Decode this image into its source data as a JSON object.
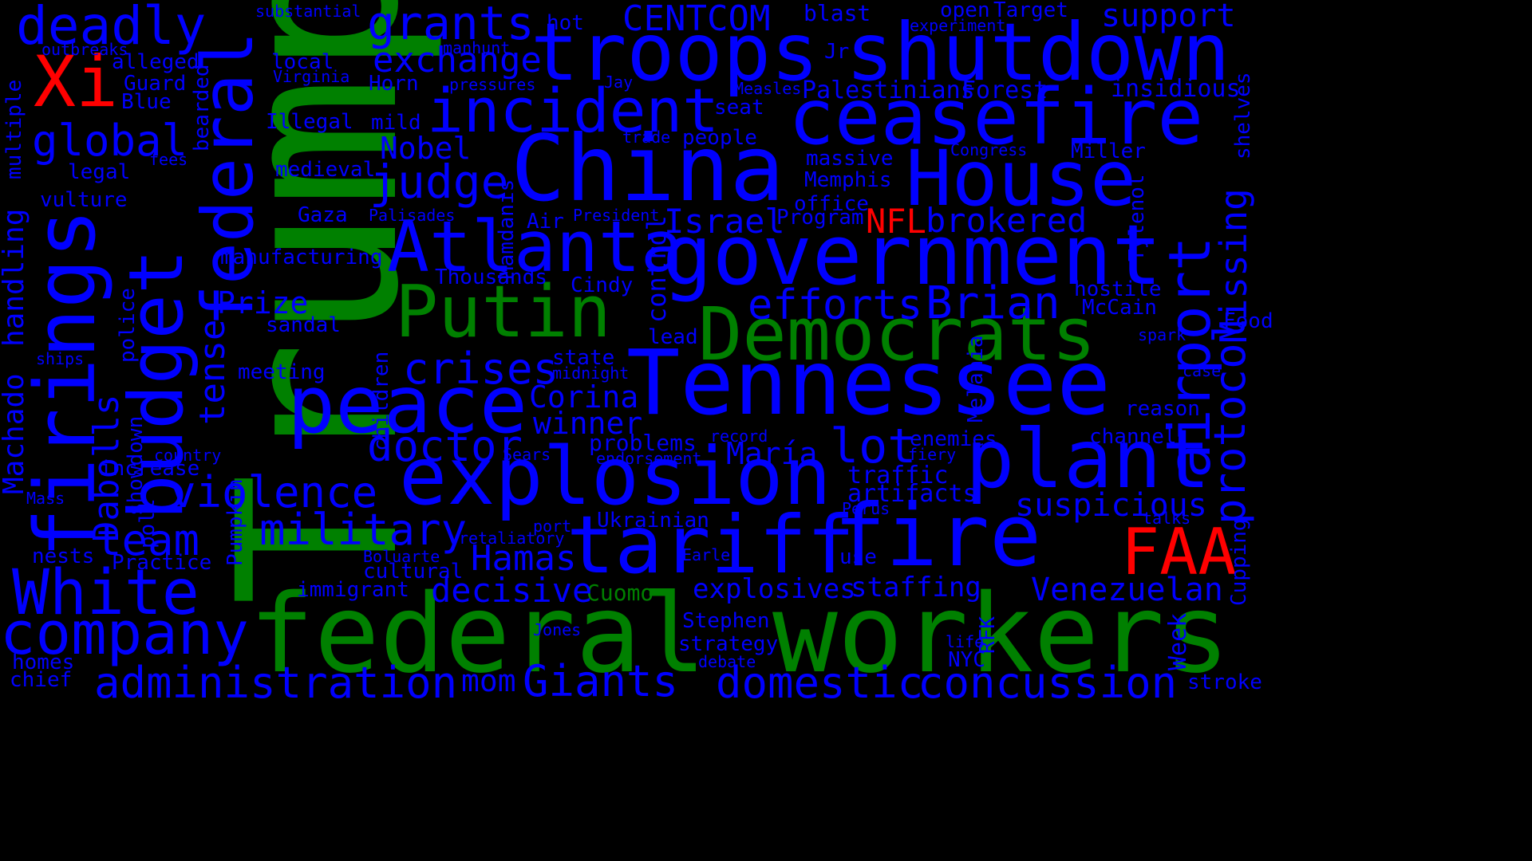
{
  "colors": {
    "background": "#000000",
    "blue": "#0000ff",
    "green": "#008000",
    "red": "#ff0000"
  },
  "words": [
    {
      "text": "Trump",
      "color": "green"
    },
    {
      "text": "federal",
      "color": "green"
    },
    {
      "text": "workers",
      "color": "green"
    },
    {
      "text": "Democrats",
      "color": "green"
    },
    {
      "text": "Putin",
      "color": "green"
    },
    {
      "text": "Cuomo",
      "color": "green"
    },
    {
      "text": "Xi",
      "color": "red"
    },
    {
      "text": "FAA",
      "color": "red"
    },
    {
      "text": "NFL",
      "color": "red"
    },
    {
      "text": "troops",
      "color": "blue"
    },
    {
      "text": "shutdown",
      "color": "blue"
    },
    {
      "text": "ceasefire",
      "color": "blue"
    },
    {
      "text": "China",
      "color": "blue"
    },
    {
      "text": "House",
      "color": "blue"
    },
    {
      "text": "government",
      "color": "blue"
    },
    {
      "text": "Tennessee",
      "color": "blue"
    },
    {
      "text": "explosion",
      "color": "blue"
    },
    {
      "text": "plant",
      "color": "blue"
    },
    {
      "text": "tariff",
      "color": "blue"
    },
    {
      "text": "fire",
      "color": "blue"
    },
    {
      "text": "peace",
      "color": "blue"
    },
    {
      "text": "Atlanta",
      "color": "blue"
    },
    {
      "text": "incident",
      "color": "blue"
    },
    {
      "text": "firings",
      "color": "blue"
    },
    {
      "text": "budget",
      "color": "blue"
    },
    {
      "text": "federal",
      "color": "blue"
    },
    {
      "text": "airport",
      "color": "blue"
    },
    {
      "text": "protocol",
      "color": "blue"
    },
    {
      "text": "White",
      "color": "blue"
    },
    {
      "text": "company",
      "color": "blue"
    },
    {
      "text": "administration",
      "color": "blue"
    },
    {
      "text": "domestic",
      "color": "blue"
    },
    {
      "text": "concussion",
      "color": "blue"
    },
    {
      "text": "deadly",
      "color": "blue"
    },
    {
      "text": "grants",
      "color": "blue"
    },
    {
      "text": "exchange",
      "color": "blue"
    },
    {
      "text": "judge",
      "color": "blue"
    },
    {
      "text": "global",
      "color": "blue"
    },
    {
      "text": "crises",
      "color": "blue"
    },
    {
      "text": "military",
      "color": "blue"
    },
    {
      "text": "violence",
      "color": "blue"
    },
    {
      "text": "doctor",
      "color": "blue"
    },
    {
      "text": "team",
      "color": "blue"
    },
    {
      "text": "Giants",
      "color": "blue"
    },
    {
      "text": "decisive",
      "color": "blue"
    },
    {
      "text": "Hamas",
      "color": "blue"
    },
    {
      "text": "lot",
      "color": "blue"
    },
    {
      "text": "efforts",
      "color": "blue"
    },
    {
      "text": "Brian",
      "color": "blue"
    },
    {
      "text": "Israel",
      "color": "blue"
    },
    {
      "text": "brokered",
      "color": "blue"
    },
    {
      "text": "Missing",
      "color": "blue"
    },
    {
      "text": "Venezuelan",
      "color": "blue"
    },
    {
      "text": "suspicious",
      "color": "blue"
    },
    {
      "text": "staffing",
      "color": "blue"
    },
    {
      "text": "explosives",
      "color": "blue"
    },
    {
      "text": "CENTCOM",
      "color": "blue"
    },
    {
      "text": "support",
      "color": "blue"
    },
    {
      "text": "Nobel",
      "color": "blue"
    },
    {
      "text": "Prize",
      "color": "blue"
    },
    {
      "text": "Corina",
      "color": "blue"
    },
    {
      "text": "winner",
      "color": "blue"
    },
    {
      "text": "María",
      "color": "blue"
    },
    {
      "text": "Machado",
      "color": "blue"
    },
    {
      "text": "handling",
      "color": "blue"
    },
    {
      "text": "Dabolls",
      "color": "blue"
    },
    {
      "text": "tense",
      "color": "blue"
    },
    {
      "text": "mom",
      "color": "blue"
    },
    {
      "text": "Palestinians",
      "color": "blue"
    },
    {
      "text": "Forest",
      "color": "blue"
    },
    {
      "text": "insidious",
      "color": "blue"
    },
    {
      "text": "hostile",
      "color": "blue"
    },
    {
      "text": "McCain",
      "color": "blue"
    },
    {
      "text": "Melania",
      "color": "blue"
    },
    {
      "text": "Tylenol",
      "color": "blue"
    },
    {
      "text": "Memphis",
      "color": "blue"
    },
    {
      "text": "massive",
      "color": "blue"
    },
    {
      "text": "Miller",
      "color": "blue"
    },
    {
      "text": "control",
      "color": "blue"
    },
    {
      "text": "problems",
      "color": "blue"
    },
    {
      "text": "traffic",
      "color": "blue"
    },
    {
      "text": "artifacts",
      "color": "blue"
    },
    {
      "text": "Ukrainian",
      "color": "blue"
    },
    {
      "text": "Stephen",
      "color": "blue"
    },
    {
      "text": "strategy",
      "color": "blue"
    },
    {
      "text": "NYC",
      "color": "blue"
    },
    {
      "text": "Week",
      "color": "blue"
    },
    {
      "text": "stroke",
      "color": "blue"
    },
    {
      "text": "channel",
      "color": "blue"
    },
    {
      "text": "enemies",
      "color": "blue"
    },
    {
      "text": "Food",
      "color": "blue"
    },
    {
      "text": "Cupping",
      "color": "blue"
    },
    {
      "text": "reason",
      "color": "blue"
    },
    {
      "text": "blast",
      "color": "blue"
    },
    {
      "text": "hot",
      "color": "blue"
    },
    {
      "text": "Horn",
      "color": "blue"
    },
    {
      "text": "Blue",
      "color": "blue"
    },
    {
      "text": "Guard",
      "color": "blue"
    },
    {
      "text": "local",
      "color": "blue"
    },
    {
      "text": "Illegal",
      "color": "blue"
    },
    {
      "text": "mild",
      "color": "blue"
    },
    {
      "text": "medieval",
      "color": "blue"
    },
    {
      "text": "Gaza",
      "color": "blue"
    },
    {
      "text": "Air",
      "color": "blue"
    },
    {
      "text": "manufacturing",
      "color": "blue"
    },
    {
      "text": "Thousands",
      "color": "blue"
    },
    {
      "text": "Cindy",
      "color": "blue"
    },
    {
      "text": "sandal",
      "color": "blue"
    },
    {
      "text": "meeting",
      "color": "blue"
    },
    {
      "text": "lead",
      "color": "blue"
    },
    {
      "text": "state",
      "color": "blue"
    },
    {
      "text": "midnight",
      "color": "blue"
    },
    {
      "text": "increase",
      "color": "blue"
    },
    {
      "text": "immigrant",
      "color": "blue"
    },
    {
      "text": "cultural",
      "color": "blue"
    },
    {
      "text": "Practice",
      "color": "blue"
    },
    {
      "text": "nests",
      "color": "blue"
    },
    {
      "text": "homes",
      "color": "blue"
    },
    {
      "text": "chief",
      "color": "blue"
    },
    {
      "text": "legal",
      "color": "blue"
    },
    {
      "text": "vulture",
      "color": "blue"
    },
    {
      "text": "seat",
      "color": "blue"
    },
    {
      "text": "people",
      "color": "blue"
    },
    {
      "text": "office",
      "color": "blue"
    },
    {
      "text": "Program",
      "color": "blue"
    },
    {
      "text": "use",
      "color": "blue"
    },
    {
      "text": "spark",
      "color": "blue"
    },
    {
      "text": "shelves",
      "color": "blue"
    },
    {
      "text": "multiple",
      "color": "blue"
    },
    {
      "text": "bearded",
      "color": "blue"
    },
    {
      "text": "police",
      "color": "blue"
    },
    {
      "text": "showdown",
      "color": "blue"
    },
    {
      "text": "poll",
      "color": "blue"
    },
    {
      "text": "Pumpkin",
      "color": "blue"
    },
    {
      "text": "children",
      "color": "blue"
    },
    {
      "text": "Mamdanis",
      "color": "blue"
    },
    {
      "text": "RFK",
      "color": "blue"
    },
    {
      "text": "substantial",
      "color": "blue"
    },
    {
      "text": "outbreaks",
      "color": "blue"
    },
    {
      "text": "alleged",
      "color": "blue"
    },
    {
      "text": "manhunt",
      "color": "blue"
    },
    {
      "text": "Virginia",
      "color": "blue"
    },
    {
      "text": "pressures",
      "color": "blue"
    },
    {
      "text": "Jay",
      "color": "blue"
    },
    {
      "text": "Jr",
      "color": "blue"
    },
    {
      "text": "open",
      "color": "blue"
    },
    {
      "text": "Target",
      "color": "blue"
    },
    {
      "text": "experiment",
      "color": "blue"
    },
    {
      "text": "Measles",
      "color": "blue"
    },
    {
      "text": "trade",
      "color": "blue"
    },
    {
      "text": "fees",
      "color": "blue"
    },
    {
      "text": "Congress",
      "color": "blue"
    },
    {
      "text": "Palisades",
      "color": "blue"
    },
    {
      "text": "President",
      "color": "blue"
    },
    {
      "text": "ships",
      "color": "blue"
    },
    {
      "text": "country",
      "color": "blue"
    },
    {
      "text": "Sears",
      "color": "blue"
    },
    {
      "text": "endorsement",
      "color": "blue"
    },
    {
      "text": "record",
      "color": "blue"
    },
    {
      "text": "fiery",
      "color": "blue"
    },
    {
      "text": "case",
      "color": "blue"
    },
    {
      "text": "Mass",
      "color": "blue"
    },
    {
      "text": "retaliatory",
      "color": "blue"
    },
    {
      "text": "port",
      "color": "blue"
    },
    {
      "text": "Boluarte",
      "color": "blue"
    },
    {
      "text": "Earle",
      "color": "blue"
    },
    {
      "text": "Perus",
      "color": "blue"
    },
    {
      "text": "talks",
      "color": "blue"
    },
    {
      "text": "Jones",
      "color": "blue"
    },
    {
      "text": "life",
      "color": "blue"
    },
    {
      "text": "debate",
      "color": "blue"
    }
  ]
}
